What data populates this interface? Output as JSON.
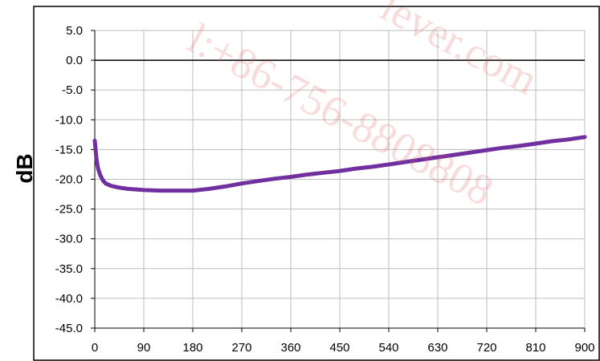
{
  "chart_data": {
    "type": "line",
    "title": "",
    "xlabel": "",
    "ylabel": "dB",
    "xlim": [
      0,
      900
    ],
    "ylim": [
      -45,
      5
    ],
    "x_ticks": [
      "0",
      "90",
      "180",
      "270",
      "360",
      "450",
      "540",
      "630",
      "720",
      "810",
      "900"
    ],
    "y_ticks": [
      "5.0",
      "0.0",
      "-5.0",
      "-10.0",
      "-15.0",
      "-20.0",
      "-25.0",
      "-30.0",
      "-35.0",
      "-40.0",
      "-45.0"
    ],
    "x_tick_values": [
      0,
      90,
      180,
      270,
      360,
      450,
      540,
      630,
      720,
      810,
      900
    ],
    "y_tick_values": [
      5,
      0,
      -5,
      -10,
      -15,
      -20,
      -25,
      -30,
      -35,
      -40,
      -45
    ],
    "reference_line_y": 0,
    "grid": true,
    "legend": "none",
    "series": [
      {
        "color": "#7030a0",
        "x": [
          0,
          3,
          6,
          10,
          15,
          20,
          30,
          45,
          60,
          90,
          120,
          150,
          180,
          210,
          240,
          270,
          300,
          330,
          360,
          390,
          420,
          450,
          480,
          510,
          540,
          570,
          600,
          630,
          660,
          690,
          720,
          750,
          780,
          810,
          840,
          870,
          900
        ],
        "y": [
          -13.5,
          -16.5,
          -18.2,
          -19.3,
          -20.2,
          -20.7,
          -21.1,
          -21.4,
          -21.6,
          -21.8,
          -21.9,
          -21.9,
          -21.9,
          -21.6,
          -21.2,
          -20.7,
          -20.3,
          -19.9,
          -19.6,
          -19.2,
          -18.9,
          -18.6,
          -18.2,
          -17.9,
          -17.5,
          -17.1,
          -16.7,
          -16.3,
          -15.9,
          -15.5,
          -15.1,
          -14.7,
          -14.4,
          -14.0,
          -13.6,
          -13.3,
          -12.9
        ]
      }
    ]
  },
  "watermark": {
    "line1": "l:+86-756-8808808",
    "line2": "lever.com"
  },
  "colors": {
    "series": "#7030a0",
    "grid": "#bdbdbd",
    "axis": "#000000",
    "watermark": "#e06060"
  }
}
